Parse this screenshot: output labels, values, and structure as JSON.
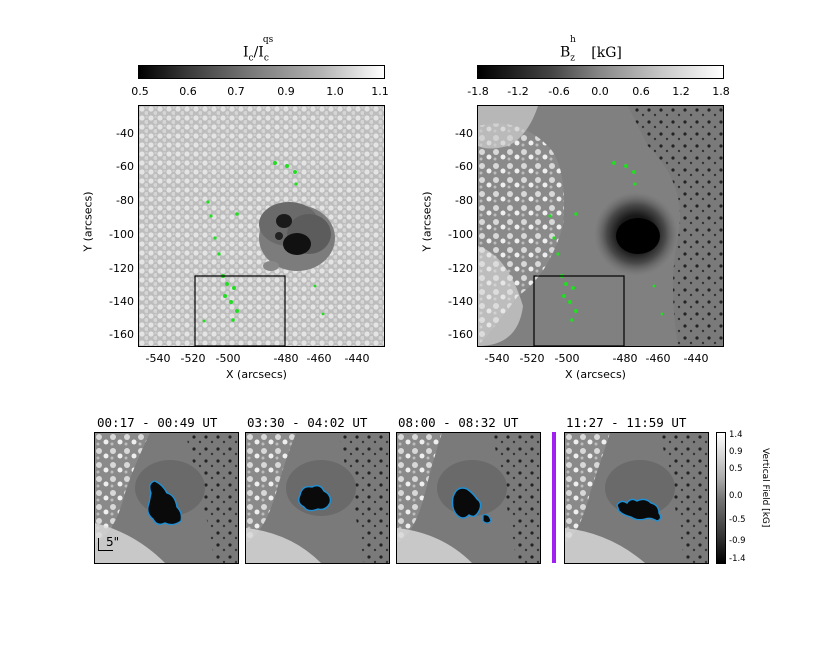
{
  "top_left": {
    "colorbar_title_main": "I",
    "colorbar_title_sub": "c",
    "colorbar_title_sep": "/I",
    "colorbar_title_sub2": "c",
    "colorbar_title_sup2": "qs",
    "colorbar_ticks": [
      "0.5",
      "0.6",
      "0.7",
      "0.9",
      "1.0",
      "1.1"
    ],
    "ylabel": "Y (arcsecs)",
    "xlabel": "X (arcsecs)",
    "yticks": [
      "-40",
      "-60",
      "-80",
      "-100",
      "-120",
      "-140",
      "-160"
    ],
    "xticks": [
      "-540",
      "-520",
      "-500",
      "-480",
      "-460",
      "-440"
    ]
  },
  "top_right": {
    "colorbar_title_main": "B",
    "colorbar_title_sub": "z",
    "colorbar_title_sup": "h",
    "colorbar_title_unit": "[kG]",
    "colorbar_ticks": [
      "-1.8",
      "-1.2",
      "-0.6",
      "0.0",
      "0.6",
      "1.2",
      "1.8"
    ],
    "ylabel": "Y (arcsecs)",
    "xlabel": "X (arcsecs)",
    "yticks": [
      "-40",
      "-60",
      "-80",
      "-100",
      "-120",
      "-140",
      "-160"
    ],
    "xticks": [
      "-540",
      "-520",
      "-500",
      "-480",
      "-460",
      "-440"
    ]
  },
  "bottom_panels": [
    {
      "title": "00:17 - 00:49 UT"
    },
    {
      "title": "03:30 - 04:02 UT"
    },
    {
      "title": "08:00 - 08:32 UT"
    },
    {
      "title": "11:27 - 11:59 UT"
    }
  ],
  "scale_bar_label": "5\"",
  "vertical_colorbar": {
    "label": "Vertical Field [kG]",
    "ticks": [
      "1.4",
      "0.9",
      "0.5",
      "0.0",
      "-0.5",
      "-0.9",
      "-1.4"
    ]
  },
  "colors": {
    "green_markers": "#22dd22",
    "contour": "#1e90d6",
    "separator": "#a020f0"
  }
}
